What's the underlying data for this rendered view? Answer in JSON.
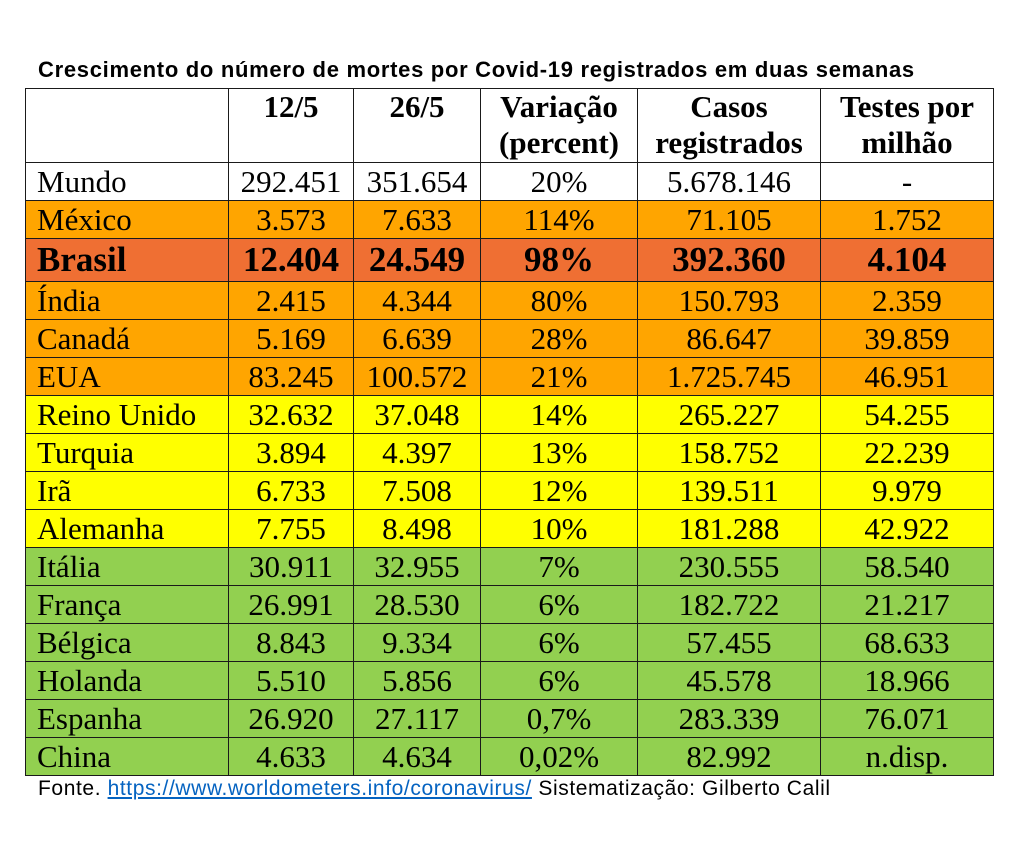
{
  "chart_data": {
    "type": "table",
    "title": "Crescimento do número de mortes por Covid-19 registrados em duas semanas",
    "columns": [
      "",
      "12/5",
      "26/5",
      "Variação\n(percent)",
      "Casos\nregistrados",
      "Testes por\nmilhão"
    ],
    "rows": [
      {
        "cells": [
          "Mundo",
          "292.451",
          "351.654",
          "20%",
          "5.678.146",
          "-"
        ],
        "color": "#FFFFFF"
      },
      {
        "cells": [
          "México",
          "3.573",
          "7.633",
          "114%",
          "71.105",
          "1.752"
        ],
        "color": "#FFA500"
      },
      {
        "cells": [
          "Brasil",
          "12.404",
          "24.549",
          "98%",
          "392.360",
          "4.104"
        ],
        "color": "#EF6F33",
        "emphasis": true
      },
      {
        "cells": [
          "Índia",
          "2.415",
          "4.344",
          "80%",
          "150.793",
          "2.359"
        ],
        "color": "#FFA500"
      },
      {
        "cells": [
          "Canadá",
          "5.169",
          "6.639",
          "28%",
          "86.647",
          "39.859"
        ],
        "color": "#FFA500"
      },
      {
        "cells": [
          "EUA",
          "83.245",
          "100.572",
          "21%",
          "1.725.745",
          "46.951"
        ],
        "color": "#FFA500"
      },
      {
        "cells": [
          "Reino Unido",
          "32.632",
          "37.048",
          "14%",
          "265.227",
          "54.255"
        ],
        "color": "#FFFF00"
      },
      {
        "cells": [
          "Turquia",
          "3.894",
          "4.397",
          "13%",
          "158.752",
          "22.239"
        ],
        "color": "#FFFF00"
      },
      {
        "cells": [
          "Irã",
          "6.733",
          "7.508",
          "12%",
          "139.511",
          "9.979"
        ],
        "color": "#FFFF00"
      },
      {
        "cells": [
          "Alemanha",
          "7.755",
          "8.498",
          "10%",
          "181.288",
          "42.922"
        ],
        "color": "#FFFF00"
      },
      {
        "cells": [
          "Itália",
          "30.911",
          "32.955",
          "7%",
          "230.555",
          "58.540"
        ],
        "color": "#92D050"
      },
      {
        "cells": [
          "França",
          "26.991",
          "28.530",
          "6%",
          "182.722",
          "21.217"
        ],
        "color": "#92D050"
      },
      {
        "cells": [
          "Bélgica",
          "8.843",
          "9.334",
          "6%",
          "57.455",
          "68.633"
        ],
        "color": "#92D050"
      },
      {
        "cells": [
          "Holanda",
          "5.510",
          "5.856",
          "6%",
          "45.578",
          "18.966"
        ],
        "color": "#92D050"
      },
      {
        "cells": [
          "Espanha",
          "26.920",
          "27.117",
          "0,7%",
          "283.339",
          "76.071"
        ],
        "color": "#92D050"
      },
      {
        "cells": [
          "China",
          "4.633",
          "4.634",
          "0,02%",
          "82.992",
          "n.disp."
        ],
        "color": "#92D050"
      }
    ]
  },
  "footer": {
    "source_label": "Fonte.",
    "url": "https://www.worldometers.info/coronavirus/",
    "credit": "Sistematização: Gilberto Calil"
  },
  "colors": {
    "link": "#0563C1",
    "border": "#1A1A1A"
  }
}
